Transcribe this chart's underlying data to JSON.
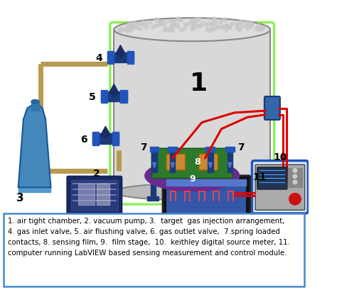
{
  "fig_width": 4.74,
  "fig_height": 4.27,
  "dpi": 100,
  "bg_color": "#ffffff",
  "legend_text": "1. air tight chamber, 2. vacuum pump, 3.  target  gas injection arrangement,\n4. gas inlet valve, 5. air flushing valve, 6. gas outlet valve,  7.spring loaded\ncontacts, 8. sensing film, 9.  film stage,  10.  keithley digital source meter, 11.\ncomputer running LabVIEW based sensing measurement and control module.",
  "legend_box_color": "#4488cc",
  "valve_color": "#1a3a7a",
  "valve_side_color": "#2255bb",
  "pipe_color": "#b89a50",
  "wire_color": "#dd0000",
  "stage_color": "#6a2a90",
  "pcb_color": "#2d7a2d",
  "sensing_pad_color": "#cc8833",
  "chamber_body": "#d8d8d8",
  "chamber_edge": "#888888",
  "chamber_green": "#90ee60",
  "num_color": "#000000",
  "gas_cyl_color": "#4488bb",
  "gas_cyl_edge": "#1a5599",
  "feedthrough_color": "#3366aa"
}
